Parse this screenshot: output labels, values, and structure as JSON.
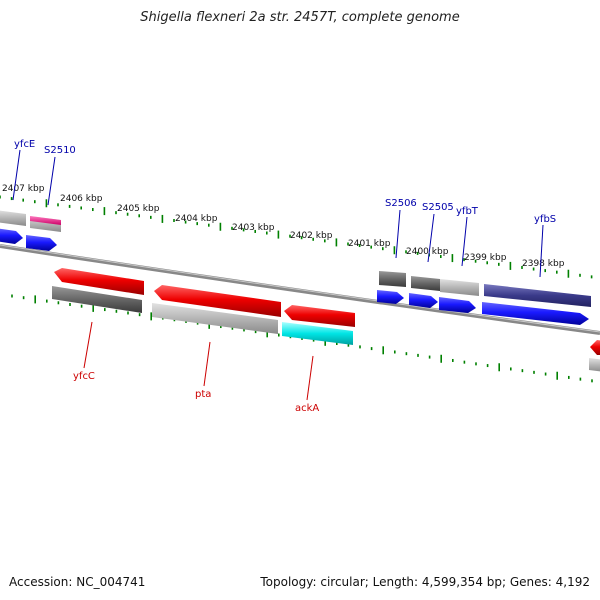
{
  "title": "Shigella flexneri 2a str. 2457T, complete genome",
  "accession": "Accession: NC_004741",
  "topology": "Topology: circular; Length: 4,599,354 bp; Genes: 4,192",
  "ticks": [
    "2407 kbp",
    "2406 kbp",
    "2405 kbp",
    "2404 kbp",
    "2403 kbp",
    "2402 kbp",
    "2401 kbp",
    "2400 kbp",
    "2399 kbp",
    "2398 kbp"
  ],
  "top_gene_labels": [
    "yfcE",
    "S2510",
    "S2506",
    "S2505",
    "yfbT",
    "yfbS"
  ],
  "bottom_gene_labels": [
    "yfcC",
    "pta",
    "ackA"
  ],
  "colors": {
    "forward_cds": "#1a1aff",
    "reverse_cds": "#ee0000",
    "gene_gray": "#a0a0a0",
    "dark_gray": "#555555",
    "pink": "#ff1493",
    "cyan": "#00e5e5",
    "navy": "#3a3a8a",
    "tick_green": "#008000",
    "backbone": "#777777"
  }
}
